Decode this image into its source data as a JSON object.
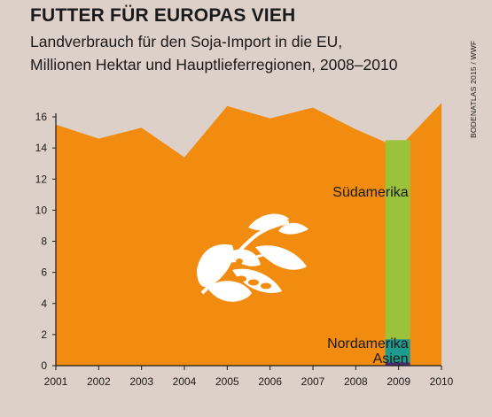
{
  "header": {
    "title": "FUTTER FÜR EUROPAS VIEH",
    "subtitle_line1": "Landverbrauch für den Soja-Import in die EU,",
    "subtitle_line2": "Millionen Hektar und Hauptlieferregionen, 2008–2010"
  },
  "credit": "BODENATLAS 2015 / WWF",
  "colors": {
    "background": "#ddd0c9",
    "area": "#f28c10",
    "suedamerika": "#9bc23b",
    "nordamerika": "#1e9a8e",
    "asien": "#4a2d6b",
    "soy_icon": "#ffffff"
  },
  "icon": "soybean-plant-icon",
  "chart_data": [
    {
      "type": "area",
      "x": [
        2001,
        2002,
        2003,
        2004,
        2005,
        2006,
        2007,
        2008,
        2009,
        2010
      ],
      "x_tick_labels": [
        "2001",
        "2002",
        "2003",
        "2004",
        "2005",
        "2006",
        "2007",
        "2008",
        "2009",
        "2010"
      ],
      "values": [
        15.5,
        14.6,
        15.3,
        13.4,
        16.7,
        15.9,
        16.6,
        15.2,
        14.0,
        16.9
      ],
      "xlim": [
        2001,
        2010
      ],
      "ylim": [
        0,
        16
      ],
      "y_ticks": [
        0,
        2,
        4,
        6,
        8,
        10,
        12,
        14,
        16
      ],
      "grid": false
    },
    {
      "type": "bar",
      "stacked": true,
      "x_position": 2009,
      "series": [
        {
          "name": "Asien",
          "value": 0.2
        },
        {
          "name": "Nordamerika",
          "value": 1.5
        },
        {
          "name": "Südamerika",
          "value": 12.8
        }
      ],
      "total": 14.5
    }
  ]
}
